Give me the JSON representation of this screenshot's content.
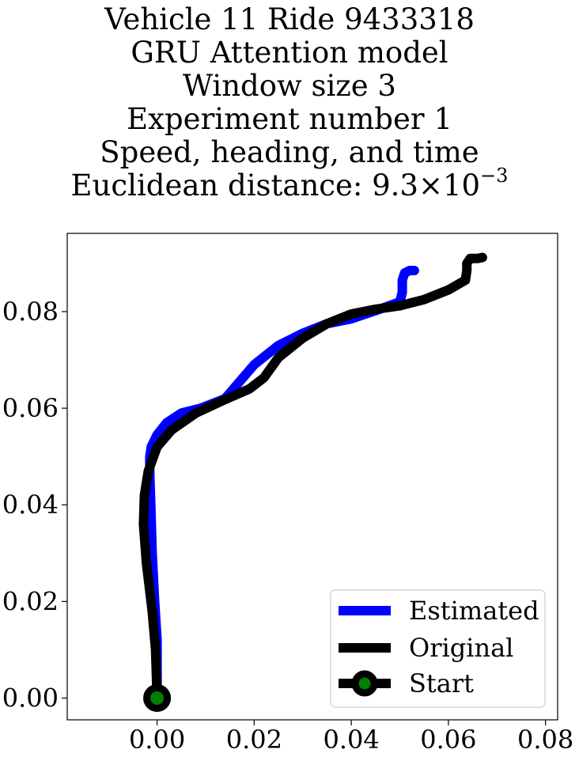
{
  "title": {
    "line1": "Vehicle 11 Ride 9433318",
    "line2": "GRU Attention model",
    "line3": "Window size 3",
    "line4": "Experiment number 1",
    "line5": "Speed, heading, and time",
    "line6_prefix": "Euclidean distance: 9.3×10",
    "line6_exp": "−3"
  },
  "chart_data": {
    "type": "line",
    "title": "Vehicle 11 Ride 9433318 / GRU Attention model / Window size 3 / Experiment number 1 / Speed, heading, and time / Euclidean distance: 9.3×10^-3",
    "xlabel": "",
    "ylabel": "",
    "xlim": [
      -0.0185,
      0.0825
    ],
    "ylim": [
      -0.0045,
      0.0962
    ],
    "xticks": [
      0.0,
      0.02,
      0.04,
      0.06,
      0.08
    ],
    "xtick_labels": [
      "0.00",
      "0.02",
      "0.04",
      "0.06",
      "0.08"
    ],
    "yticks": [
      0.0,
      0.02,
      0.04,
      0.06,
      0.08
    ],
    "ytick_labels": [
      "0.00",
      "0.02",
      "0.04",
      "0.06",
      "0.08"
    ],
    "grid": false,
    "legend_position": "lower-right",
    "series": [
      {
        "name": "Estimated",
        "color": "#0000ff",
        "x": [
          0.0,
          0.0,
          -0.0005,
          -0.001,
          -0.0013,
          -0.0015,
          -0.0015,
          -0.0012,
          0.0,
          0.002,
          0.005,
          0.009,
          0.014,
          0.017,
          0.02,
          0.025,
          0.03,
          0.035,
          0.04,
          0.045,
          0.05,
          0.0505,
          0.0505,
          0.051,
          0.052,
          0.053
        ],
        "y": [
          0.0,
          0.012,
          0.02,
          0.03,
          0.04,
          0.046,
          0.05,
          0.052,
          0.0545,
          0.057,
          0.059,
          0.06,
          0.062,
          0.0655,
          0.069,
          0.073,
          0.0755,
          0.0775,
          0.0785,
          0.0802,
          0.082,
          0.084,
          0.0865,
          0.088,
          0.0885,
          0.0885
        ]
      },
      {
        "name": "Original",
        "color": "#000000",
        "x": [
          0.0,
          -0.0003,
          -0.001,
          -0.0022,
          -0.0028,
          -0.0026,
          -0.0018,
          0.0,
          0.003,
          0.008,
          0.014,
          0.019,
          0.022,
          0.025,
          0.03,
          0.035,
          0.04,
          0.045,
          0.05,
          0.055,
          0.06,
          0.0635,
          0.0638,
          0.0638,
          0.0645,
          0.066,
          0.067
        ],
        "y": [
          0.0,
          0.01,
          0.018,
          0.028,
          0.036,
          0.042,
          0.047,
          0.052,
          0.0555,
          0.059,
          0.0618,
          0.064,
          0.0663,
          0.0705,
          0.0745,
          0.0775,
          0.0795,
          0.0805,
          0.0812,
          0.0825,
          0.0845,
          0.0865,
          0.0885,
          0.09,
          0.091,
          0.091,
          0.0912
        ]
      },
      {
        "name": "Start",
        "color": "#000000",
        "marker_face": "#008000",
        "x": [
          0.0
        ],
        "y": [
          0.0
        ]
      }
    ]
  }
}
